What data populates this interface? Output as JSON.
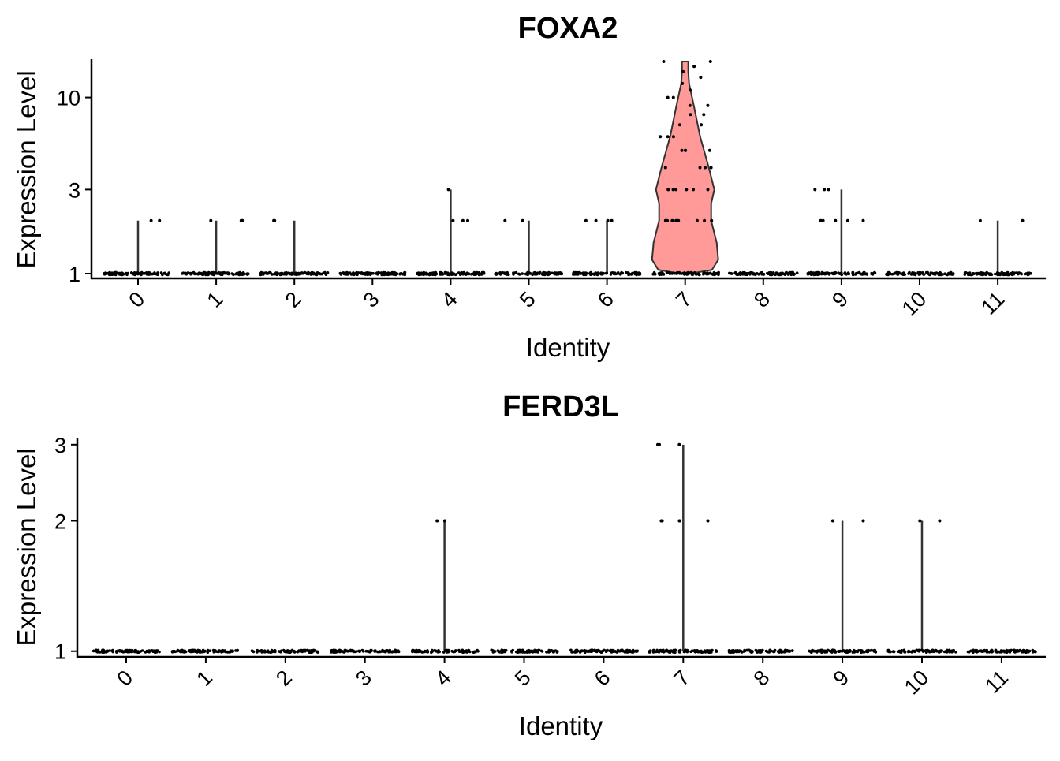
{
  "chart_data": [
    {
      "type": "violin",
      "title": "FOXA2",
      "xlabel": "Identity",
      "ylabel": "Expression Level",
      "y_scale": "log",
      "ylim": [
        0.94,
        16.5
      ],
      "y_ticks": [
        "1",
        "3",
        "10"
      ],
      "y_tick_values": [
        1,
        3,
        10
      ],
      "categories": [
        "0",
        "1",
        "2",
        "3",
        "4",
        "5",
        "6",
        "7",
        "8",
        "9",
        "10",
        "11"
      ],
      "fill_color": "#ff9a98",
      "violin_category": "7",
      "max_values": [
        2,
        2,
        2,
        1,
        3,
        2,
        2,
        16,
        1,
        3,
        1,
        2
      ],
      "outlier_points": [
        {
          "category": "0",
          "values": [
            2,
            2
          ]
        },
        {
          "category": "1",
          "values": [
            2,
            2,
            2
          ]
        },
        {
          "category": "2",
          "values": [
            2,
            2
          ]
        },
        {
          "category": "4",
          "values": [
            2,
            2,
            2,
            3
          ]
        },
        {
          "category": "5",
          "values": [
            2,
            2
          ]
        },
        {
          "category": "6",
          "values": [
            2,
            2,
            2,
            2
          ]
        },
        {
          "category": "7",
          "values": [
            16,
            16,
            15,
            14,
            13,
            12,
            11,
            10,
            10,
            9,
            9,
            8,
            8,
            7,
            7,
            7,
            6,
            6,
            6,
            5,
            5,
            5,
            5,
            4,
            4,
            4,
            4,
            3,
            3,
            3,
            3,
            3,
            3,
            2,
            2,
            2,
            2,
            2,
            2,
            2,
            2
          ]
        },
        {
          "category": "9",
          "values": [
            3,
            3,
            3,
            2,
            2,
            2,
            2,
            2
          ]
        },
        {
          "category": "11",
          "values": [
            2,
            2
          ]
        }
      ]
    },
    {
      "type": "violin",
      "title": "FERD3L",
      "xlabel": "Identity",
      "ylabel": "Expression Level",
      "y_scale": "log",
      "ylim": [
        0.97,
        3.1
      ],
      "y_ticks": [
        "1",
        "2",
        "3"
      ],
      "y_tick_values": [
        1,
        2,
        3
      ],
      "categories": [
        "0",
        "1",
        "2",
        "3",
        "4",
        "5",
        "6",
        "7",
        "8",
        "9",
        "10",
        "11"
      ],
      "fill_color": "#ff9a98",
      "max_values": [
        1,
        1,
        1,
        1,
        2,
        1,
        1,
        3,
        1,
        2,
        2,
        1
      ],
      "outlier_points": [
        {
          "category": "4",
          "values": [
            2,
            2
          ]
        },
        {
          "category": "7",
          "values": [
            3,
            3,
            3,
            2,
            2,
            2,
            2,
            2
          ]
        },
        {
          "category": "9",
          "values": [
            2,
            2
          ]
        },
        {
          "category": "10",
          "values": [
            2,
            2
          ]
        }
      ]
    }
  ]
}
